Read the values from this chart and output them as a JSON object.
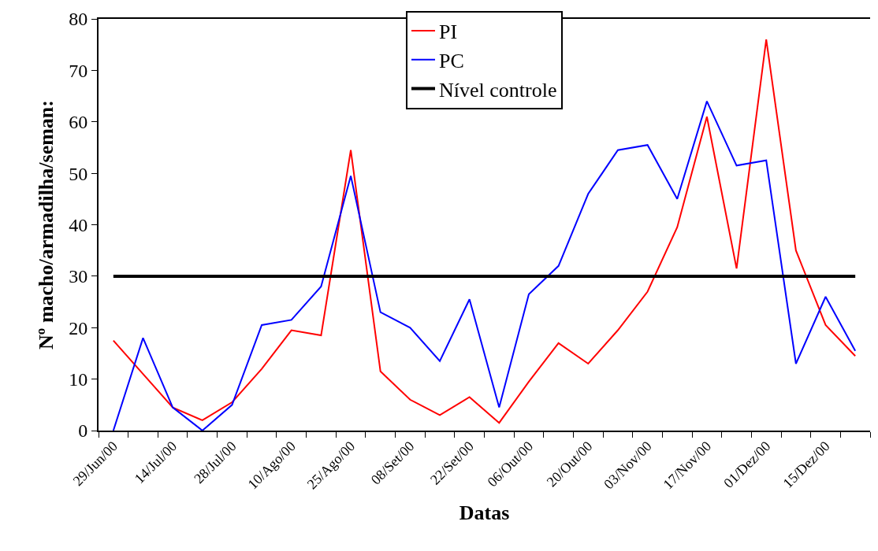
{
  "chart_data": {
    "type": "line",
    "xlabel": "Datas",
    "ylabel": "Nº macho/armadilha/seman:",
    "categories": [
      "29/Jun/00",
      null,
      "14/Jul/00",
      null,
      "28/Jul/00",
      null,
      "10/Ago/00",
      null,
      "25/Ago/00",
      null,
      "08/Set/00",
      null,
      "22/Set/00",
      null,
      "06/Out/00",
      null,
      "20/Out/00",
      null,
      "03/Nov/00",
      null,
      "17/Nov/00",
      null,
      "01/Dez/00",
      null,
      "15/Dez/00",
      null
    ],
    "series": [
      {
        "name": "PI",
        "color": "#ff0000",
        "values": [
          17.5,
          11,
          4.5,
          2,
          5.5,
          12,
          19.5,
          18.5,
          54.5,
          11.5,
          6,
          3,
          6.5,
          1.5,
          9.5,
          17,
          13,
          19.5,
          27,
          39.5,
          61,
          31.5,
          76,
          35,
          20.5,
          14.5
        ]
      },
      {
        "name": "PC",
        "color": "#0000ff",
        "values": [
          0,
          18,
          4.5,
          0,
          5,
          20.5,
          21.5,
          28,
          49.5,
          23,
          20,
          13.5,
          25.5,
          4.5,
          26.5,
          32,
          46,
          54.5,
          55.5,
          45,
          64,
          51.5,
          52.5,
          13,
          26,
          15.5
        ]
      },
      {
        "name": "Nível controle",
        "color": "#000000",
        "values": [
          30,
          30,
          30,
          30,
          30,
          30,
          30,
          30,
          30,
          30,
          30,
          30,
          30,
          30,
          30,
          30,
          30,
          30,
          30,
          30,
          30,
          30,
          30,
          30,
          30,
          30
        ]
      }
    ],
    "ylim": [
      0,
      80
    ],
    "yticks": [
      0,
      10,
      20,
      30,
      40,
      50,
      60,
      70,
      80
    ],
    "grid": false,
    "legend": "top",
    "marker": "none",
    "line_style": "solid"
  }
}
